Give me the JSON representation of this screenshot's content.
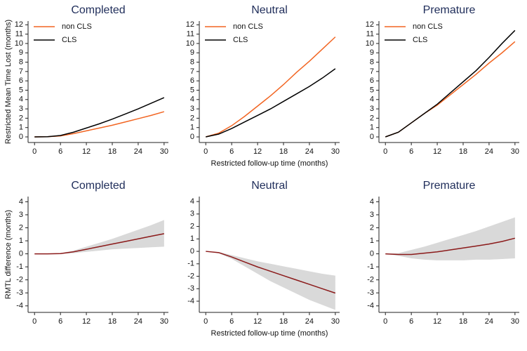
{
  "chart_data": [
    {
      "type": "line",
      "title": "Completed",
      "ylabel": "Restricted Mean Time Lost (months)",
      "x": [
        0,
        3,
        6,
        9,
        12,
        15,
        18,
        21,
        24,
        27,
        30
      ],
      "series": [
        {
          "name": "non CLS",
          "color": "#f26522",
          "values": [
            0,
            0.02,
            0.1,
            0.35,
            0.65,
            0.95,
            1.25,
            1.6,
            1.95,
            2.3,
            2.7
          ]
        },
        {
          "name": "CLS",
          "color": "#000000",
          "values": [
            0,
            0.02,
            0.15,
            0.5,
            0.95,
            1.4,
            1.9,
            2.45,
            3.0,
            3.6,
            4.2
          ]
        }
      ],
      "xlim": [
        -1.5,
        31
      ],
      "ylim": [
        -0.6,
        12.4
      ],
      "xticks": [
        0,
        6,
        12,
        18,
        24,
        30
      ],
      "yticks": [
        0,
        1,
        2,
        3,
        4,
        5,
        6,
        7,
        8,
        9,
        10,
        11,
        12
      ],
      "legend": "upper left"
    },
    {
      "type": "line",
      "title": "Neutral",
      "xlabel": "Restricted follow-up time (months)",
      "x": [
        0,
        3,
        6,
        9,
        12,
        15,
        18,
        21,
        24,
        27,
        30
      ],
      "series": [
        {
          "name": "non CLS",
          "color": "#f26522",
          "values": [
            0,
            0.4,
            1.2,
            2.2,
            3.3,
            4.4,
            5.6,
            6.9,
            8.1,
            9.4,
            10.7
          ]
        },
        {
          "name": "CLS",
          "color": "#000000",
          "values": [
            0,
            0.3,
            0.9,
            1.6,
            2.3,
            3.0,
            3.8,
            4.6,
            5.4,
            6.3,
            7.3
          ]
        }
      ],
      "xlim": [
        -1.5,
        31
      ],
      "ylim": [
        -0.6,
        12.4
      ],
      "xticks": [
        0,
        6,
        12,
        18,
        24,
        30
      ],
      "yticks": [
        0,
        1,
        2,
        3,
        4,
        5,
        6,
        7,
        8,
        9,
        10,
        11,
        12
      ],
      "legend": "upper left"
    },
    {
      "type": "line",
      "title": "Premature",
      "x": [
        0,
        3,
        6,
        9,
        12,
        15,
        18,
        21,
        24,
        27,
        30
      ],
      "series": [
        {
          "name": "non CLS",
          "color": "#f26522",
          "values": [
            0,
            0.5,
            1.5,
            2.5,
            3.4,
            4.5,
            5.6,
            6.7,
            7.9,
            9.0,
            10.2
          ]
        },
        {
          "name": "CLS",
          "color": "#000000",
          "values": [
            0,
            0.5,
            1.5,
            2.5,
            3.5,
            4.7,
            5.9,
            7.1,
            8.5,
            10.0,
            11.4
          ]
        }
      ],
      "xlim": [
        -1.5,
        31
      ],
      "ylim": [
        -0.6,
        12.4
      ],
      "xticks": [
        0,
        6,
        12,
        18,
        24,
        30
      ],
      "yticks": [
        0,
        1,
        2,
        3,
        4,
        5,
        6,
        7,
        8,
        9,
        10,
        11,
        12
      ],
      "legend": "upper left"
    },
    {
      "type": "band",
      "title": "Completed",
      "ylabel": "RMTL difference (months)",
      "x": [
        0,
        3,
        6,
        9,
        12,
        15,
        18,
        21,
        24,
        27,
        30
      ],
      "color": "#8b1a1a",
      "band_color": "#d9d9d9",
      "values": [
        0,
        0,
        0.02,
        0.15,
        0.35,
        0.55,
        0.75,
        0.95,
        1.15,
        1.35,
        1.55
      ],
      "ci_lower": [
        0,
        0,
        0,
        0.05,
        0.15,
        0.25,
        0.35,
        0.4,
        0.45,
        0.5,
        0.55
      ],
      "ci_upper": [
        0,
        0,
        0.05,
        0.25,
        0.55,
        0.85,
        1.15,
        1.5,
        1.85,
        2.2,
        2.6
      ],
      "xlim": [
        -1.5,
        31
      ],
      "ylim": [
        -4.5,
        4.4
      ],
      "xticks": [
        0,
        6,
        12,
        18,
        24,
        30
      ],
      "yticks": [
        -4,
        -3,
        -2,
        -1,
        0,
        1,
        2,
        3,
        4
      ]
    },
    {
      "type": "band",
      "title": "Neutral",
      "xlabel": "Restricted follow-up time (months)",
      "x": [
        0,
        3,
        6,
        9,
        12,
        15,
        18,
        21,
        24,
        27,
        30
      ],
      "color": "#8b1a1a",
      "band_color": "#d9d9d9",
      "values": [
        0,
        -0.1,
        -0.45,
        -0.85,
        -1.25,
        -1.6,
        -1.95,
        -2.3,
        -2.65,
        -3.0,
        -3.35
      ],
      "ci_lower": [
        0,
        -0.15,
        -0.6,
        -1.2,
        -1.8,
        -2.4,
        -2.9,
        -3.4,
        -3.9,
        -4.3,
        -4.7
      ],
      "ci_upper": [
        0,
        -0.05,
        -0.3,
        -0.55,
        -0.8,
        -1.0,
        -1.2,
        -1.4,
        -1.6,
        -1.8,
        -1.95
      ],
      "xlim": [
        -1.5,
        31
      ],
      "ylim": [
        -4.9,
        4.4
      ],
      "xticks": [
        0,
        6,
        12,
        18,
        24,
        30
      ],
      "yticks": [
        -4,
        -3,
        -2,
        -1,
        0,
        1,
        2,
        3,
        4
      ]
    },
    {
      "type": "band",
      "title": "Premature",
      "x": [
        0,
        3,
        6,
        9,
        12,
        15,
        18,
        21,
        24,
        27,
        30
      ],
      "color": "#8b1a1a",
      "band_color": "#d9d9d9",
      "values": [
        0,
        -0.05,
        -0.05,
        0.05,
        0.15,
        0.3,
        0.45,
        0.6,
        0.75,
        0.95,
        1.2
      ],
      "ci_lower": [
        0,
        -0.15,
        -0.35,
        -0.45,
        -0.5,
        -0.5,
        -0.5,
        -0.45,
        -0.45,
        -0.4,
        -0.35
      ],
      "ci_upper": [
        0,
        0.05,
        0.3,
        0.55,
        0.85,
        1.15,
        1.45,
        1.75,
        2.1,
        2.45,
        2.8
      ],
      "xlim": [
        -1.5,
        31
      ],
      "ylim": [
        -4.5,
        4.4
      ],
      "xticks": [
        0,
        6,
        12,
        18,
        24,
        30
      ],
      "yticks": [
        -4,
        -3,
        -2,
        -1,
        0,
        1,
        2,
        3,
        4
      ]
    }
  ]
}
